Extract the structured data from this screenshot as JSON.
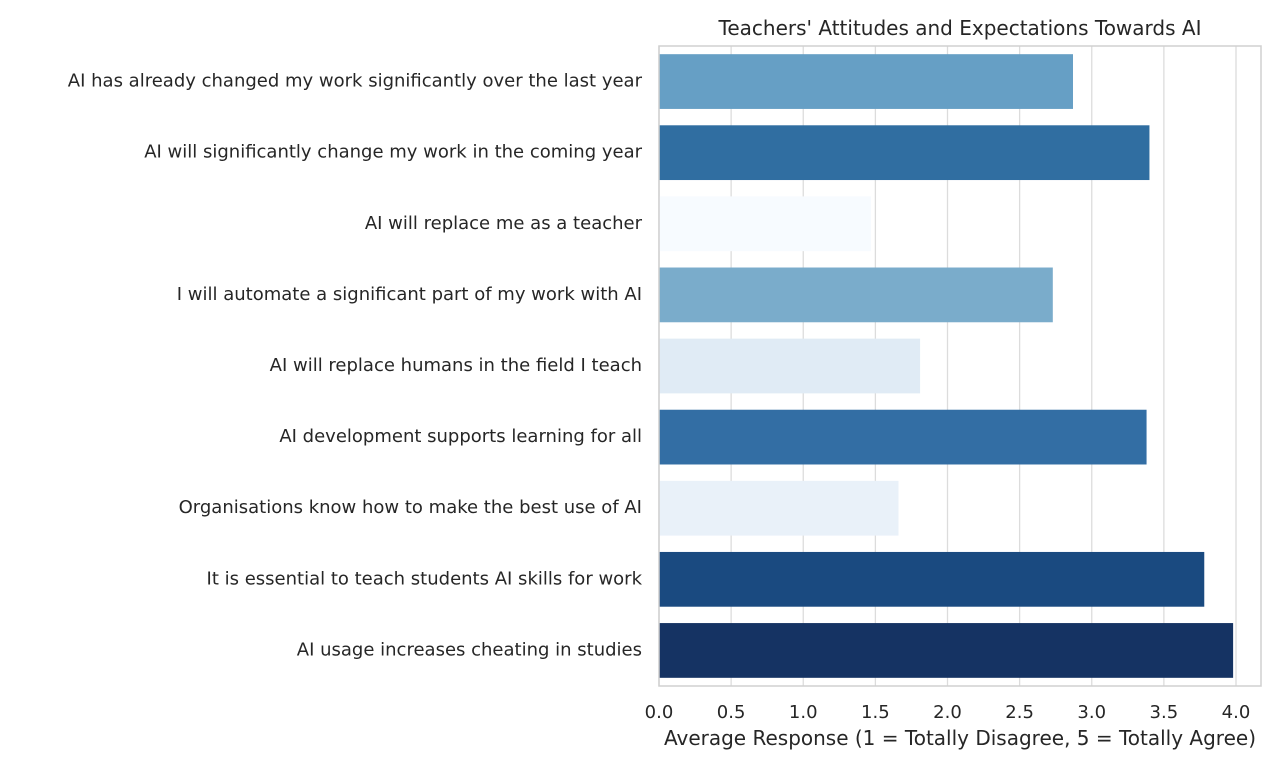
{
  "chart_data": {
    "type": "bar",
    "orientation": "horizontal",
    "title": "Teachers' Attitudes and Expectations Towards AI",
    "xlabel": "Average Response (1 = Totally Disagree, 5 = Totally Agree)",
    "ylabel": "",
    "xlim": [
      0,
      4.18
    ],
    "xticks": [
      "0.0",
      "0.5",
      "1.0",
      "1.5",
      "2.0",
      "2.5",
      "3.0",
      "3.5",
      "4.0"
    ],
    "grid": "vertical",
    "categories": [
      "AI has already changed my work significantly over the last year",
      "AI will significantly change my work in the coming year",
      "AI will replace me as a teacher",
      "I will automate a significant part of my work with AI",
      "AI will replace humans in the field I teach",
      "AI development supports learning for all",
      "Organisations know how to make the best use of AI",
      "It is essential to teach students AI skills for work",
      "AI usage increases cheating in studies"
    ],
    "values": [
      2.87,
      3.4,
      1.47,
      2.73,
      1.81,
      3.38,
      1.66,
      3.78,
      3.98
    ],
    "colors": [
      "#669fc5",
      "#306ea1",
      "#f7fbff",
      "#7aaccb",
      "#e0ebf5",
      "#336ea4",
      "#e9f1f9",
      "#1a4a80",
      "#153363"
    ]
  }
}
